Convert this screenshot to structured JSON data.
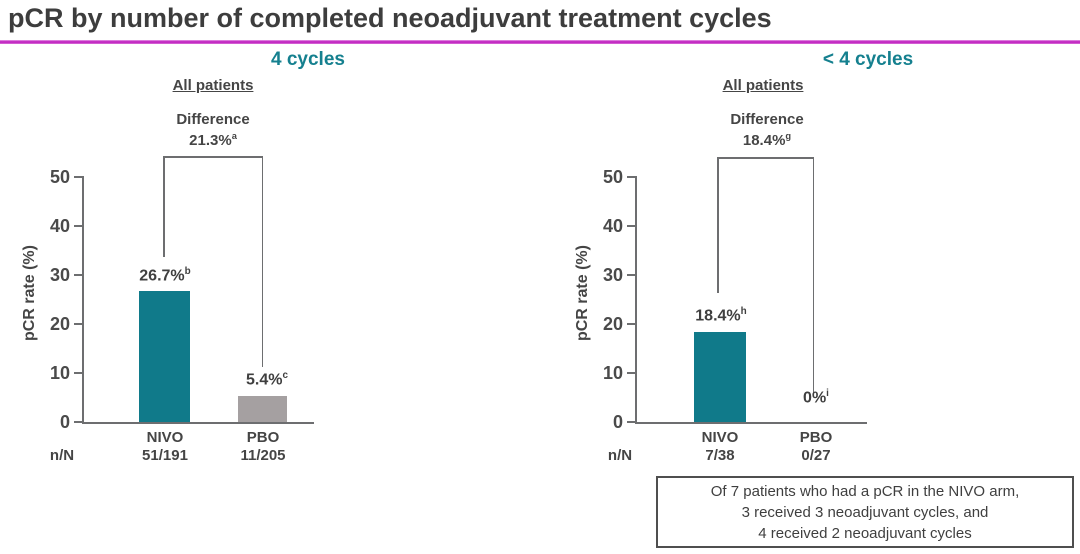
{
  "title": "pCR by number of completed neoadjuvant treatment cycles",
  "colors": {
    "magenta_rule": "#c32cc3",
    "teal_bar": "#107a8a",
    "teal_text": "#15808f",
    "gray_bar": "#a5a0a1",
    "axis_gray": "#6d6e70"
  },
  "charts": [
    {
      "header": "4 cycles",
      "subheader": "All patients",
      "difference_label": "Difference",
      "difference_value": "21.3%",
      "difference_footnote": "a",
      "y_axis": {
        "label": "pCR rate (%)",
        "max": 50,
        "ticks": [
          "50",
          "40",
          "30",
          "20",
          "10",
          "0"
        ]
      },
      "n_axis_label": "n/N",
      "bars": [
        {
          "group": "NIVO",
          "value_label": "26.7%",
          "footnote": "b",
          "n_over_N": "51/191"
        },
        {
          "group": "PBO",
          "value_label": "5.4%",
          "footnote": "c",
          "n_over_N": "11/205"
        }
      ]
    },
    {
      "header": "< 4 cycles",
      "subheader": "All patients",
      "difference_label": "Difference",
      "difference_value": "18.4%",
      "difference_footnote": "g",
      "y_axis": {
        "label": "pCR rate (%)",
        "max": 50,
        "ticks": [
          "50",
          "40",
          "30",
          "20",
          "10",
          "0"
        ]
      },
      "n_axis_label": "n/N",
      "bars": [
        {
          "group": "NIVO",
          "value_label": "18.4%",
          "footnote": "h",
          "n_over_N": "7/38"
        },
        {
          "group": "PBO",
          "value_label": "0%",
          "footnote": "i",
          "n_over_N": "0/27"
        }
      ]
    }
  ],
  "note_box": {
    "lines": [
      "Of 7 patients who had a pCR in the NIVO arm,",
      "3 received 3 neoadjuvant cycles, and",
      "4 received 2 neoadjuvant cycles"
    ]
  },
  "chart_data": [
    {
      "type": "bar",
      "title": "4 cycles — All patients",
      "categories": [
        "NIVO",
        "PBO"
      ],
      "values": [
        26.7,
        5.4
      ],
      "series": [
        {
          "name": "pCR rate",
          "values": [
            26.7,
            5.4
          ]
        }
      ],
      "xlabel": "",
      "ylabel": "pCR rate (%)",
      "ylim": [
        0,
        50
      ],
      "yticks": [
        0,
        10,
        20,
        30,
        40,
        50
      ],
      "grid": false,
      "annotations": [
        "Difference 21.3% (a)",
        "NIVO 26.7% (b), n/N 51/191",
        "PBO 5.4% (c), n/N 11/205"
      ]
    },
    {
      "type": "bar",
      "title": "< 4 cycles — All patients",
      "categories": [
        "NIVO",
        "PBO"
      ],
      "values": [
        18.4,
        0
      ],
      "series": [
        {
          "name": "pCR rate",
          "values": [
            18.4,
            0
          ]
        }
      ],
      "xlabel": "",
      "ylabel": "pCR rate (%)",
      "ylim": [
        0,
        50
      ],
      "yticks": [
        0,
        10,
        20,
        30,
        40,
        50
      ],
      "grid": false,
      "annotations": [
        "Difference 18.4% (g)",
        "NIVO 18.4% (h), n/N 7/38",
        "PBO 0% (i), n/N 0/27"
      ]
    }
  ]
}
